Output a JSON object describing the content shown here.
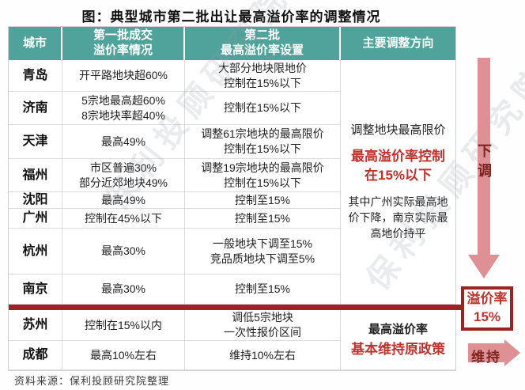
{
  "title": "图：典型城市第二批出让最高溢价率的调整情况",
  "source": "资料来源：保利投顾研究院整理",
  "watermark": "保利投顾研究院",
  "colors": {
    "header_teal": "#4fa39b",
    "dark_red": "#9b2423",
    "highlight_red": "#c1322d",
    "arrow_pink": "#de9094"
  },
  "table": {
    "headers": {
      "city": "城市",
      "first_batch": "第一批成交\n溢价率情况",
      "second_batch": "第二批\n最高溢价率设置",
      "direction": "主要调整方向"
    },
    "rows": [
      {
        "city": "青岛",
        "first": "开平路地块超60%",
        "second": "大部分地块限地价\n控制在15%以下"
      },
      {
        "city": "济南",
        "first": "5宗地最高超60%\n8宗地块率超40%",
        "second": "控制在15%以下"
      },
      {
        "city": "天津",
        "first": "最高49%",
        "second": "调整61宗地块的最高限价\n控制在15%以下"
      },
      {
        "city": "福州",
        "first": "市区普遍30%\n部分近郊地块49%",
        "second": "调整19宗地块的最高限价\n控制在15%以下"
      },
      {
        "city": "沈阳",
        "first": "最高49%",
        "second": "控制至15%"
      },
      {
        "city": "广州",
        "first": "控制在45%以下",
        "second": "控制至15%"
      },
      {
        "city": "杭州",
        "first": "最高30%",
        "second": "一般地块下调至15%\n竞品质地块下调至5%"
      },
      {
        "city": "南京",
        "first": "最高30%",
        "second": "控制至15%"
      },
      {
        "city": "苏州",
        "first": "控制在15%以内",
        "second": "调低5宗地块\n一次性报价区间"
      },
      {
        "city": "成都",
        "first": "最高10%左右",
        "second": "维持10%左右"
      }
    ],
    "direction_downgrade": {
      "note1": "调整地块最高限价",
      "highlight": "最高溢价率控制\n在15%以下",
      "note2": "其中广州实际最高地\n价下降，南京实际最\n高地价持平"
    },
    "direction_maintain": {
      "note1": "最高溢价率",
      "highlight": "基本维持原政策"
    }
  },
  "annotations": {
    "down_arrow_label": "下调",
    "rate_box": "溢价率\n15%",
    "maintain_arrow_label": "维持"
  },
  "chart_data": {
    "type": "table",
    "title": "图：典型城市第二批出让最高溢价率的调整情况",
    "columns": [
      "城市",
      "第一批成交溢价率情况",
      "第二批最高溢价率设置",
      "主要调整方向"
    ],
    "rows": [
      [
        "青岛",
        "开平路地块超60%",
        "大部分地块限地价 控制在15%以下",
        "下调"
      ],
      [
        "济南",
        "5宗地最高超60% 8宗地块率超40%",
        "控制在15%以下",
        "下调"
      ],
      [
        "天津",
        "最高49%",
        "调整61宗地块的最高限价 控制在15%以下",
        "下调"
      ],
      [
        "福州",
        "市区普遍30% 部分近郊地块49%",
        "调整19宗地块的最高限价 控制在15%以下",
        "下调"
      ],
      [
        "沈阳",
        "最高49%",
        "控制至15%",
        "下调"
      ],
      [
        "广州",
        "控制在45%以下",
        "控制至15%",
        "下调"
      ],
      [
        "杭州",
        "最高30%",
        "一般地块下调至15% 竞品质地块下调至5%",
        "下调"
      ],
      [
        "南京",
        "最高30%",
        "控制至15%",
        "下调"
      ],
      [
        "苏州",
        "控制在15%以内",
        "调低5宗地块 一次性报价区间",
        "维持"
      ],
      [
        "成都",
        "最高10%左右",
        "维持10%左右",
        "维持"
      ]
    ],
    "annotations": {
      "downgrade_group": "调整地块最高限价；最高溢价率控制在15%以下；其中广州实际最高地价下降，南京实际最高地价持平；溢价率15%",
      "maintain_group": "最高溢价率基本维持原政策"
    },
    "source": "资料来源：保利投顾研究院整理"
  }
}
